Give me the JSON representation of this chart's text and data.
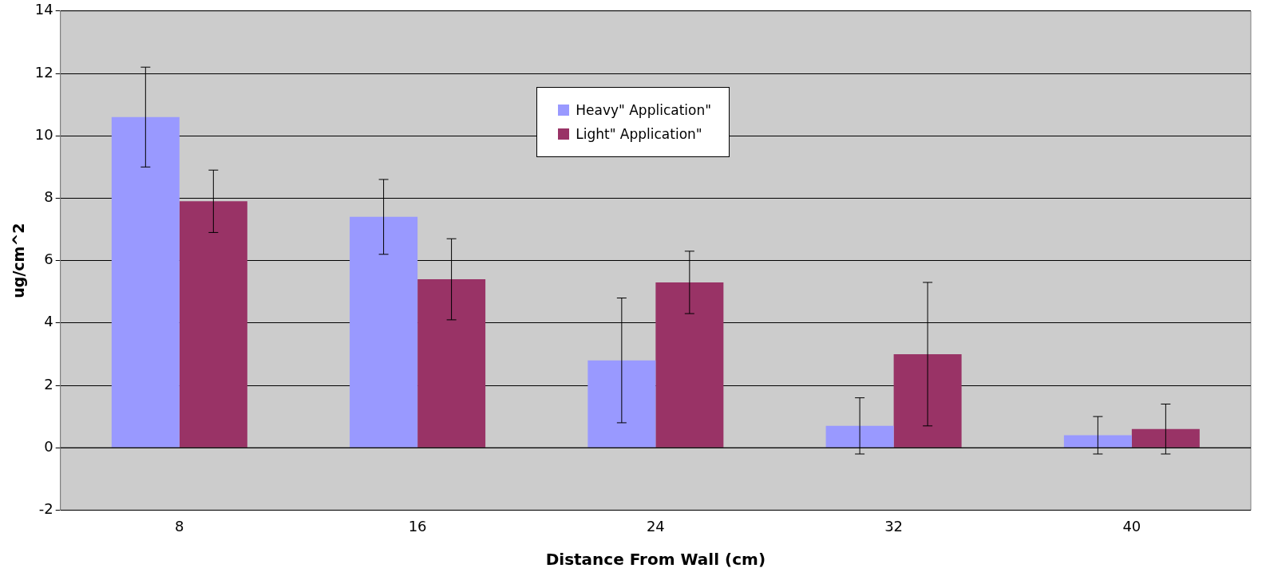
{
  "chart_data": {
    "type": "bar",
    "xlabel": "Distance From Wall (cm)",
    "ylabel": "ug/cm^2",
    "categories": [
      "8",
      "16",
      "24",
      "32",
      "40"
    ],
    "series": [
      {
        "name": "Heavy\" Application\"",
        "color": "#9999ff",
        "values": [
          10.6,
          7.4,
          2.8,
          0.7,
          0.4
        ],
        "errors": [
          [
            9.0,
            12.2
          ],
          [
            6.2,
            8.6
          ],
          [
            0.8,
            4.8
          ],
          [
            -0.2,
            1.6
          ],
          [
            -0.2,
            1.0
          ]
        ]
      },
      {
        "name": "Light\" Application\"",
        "color": "#993366",
        "values": [
          7.9,
          5.4,
          5.3,
          3.0,
          0.6
        ],
        "errors": [
          [
            6.9,
            8.9
          ],
          [
            4.1,
            6.7
          ],
          [
            4.3,
            6.3
          ],
          [
            0.7,
            5.3
          ],
          [
            -0.2,
            1.4
          ]
        ]
      }
    ],
    "ylim": [
      -2,
      14
    ],
    "yticks": [
      -2,
      0,
      2,
      4,
      6,
      8,
      10,
      12,
      14
    ],
    "grid": "y",
    "legend": "top right"
  }
}
